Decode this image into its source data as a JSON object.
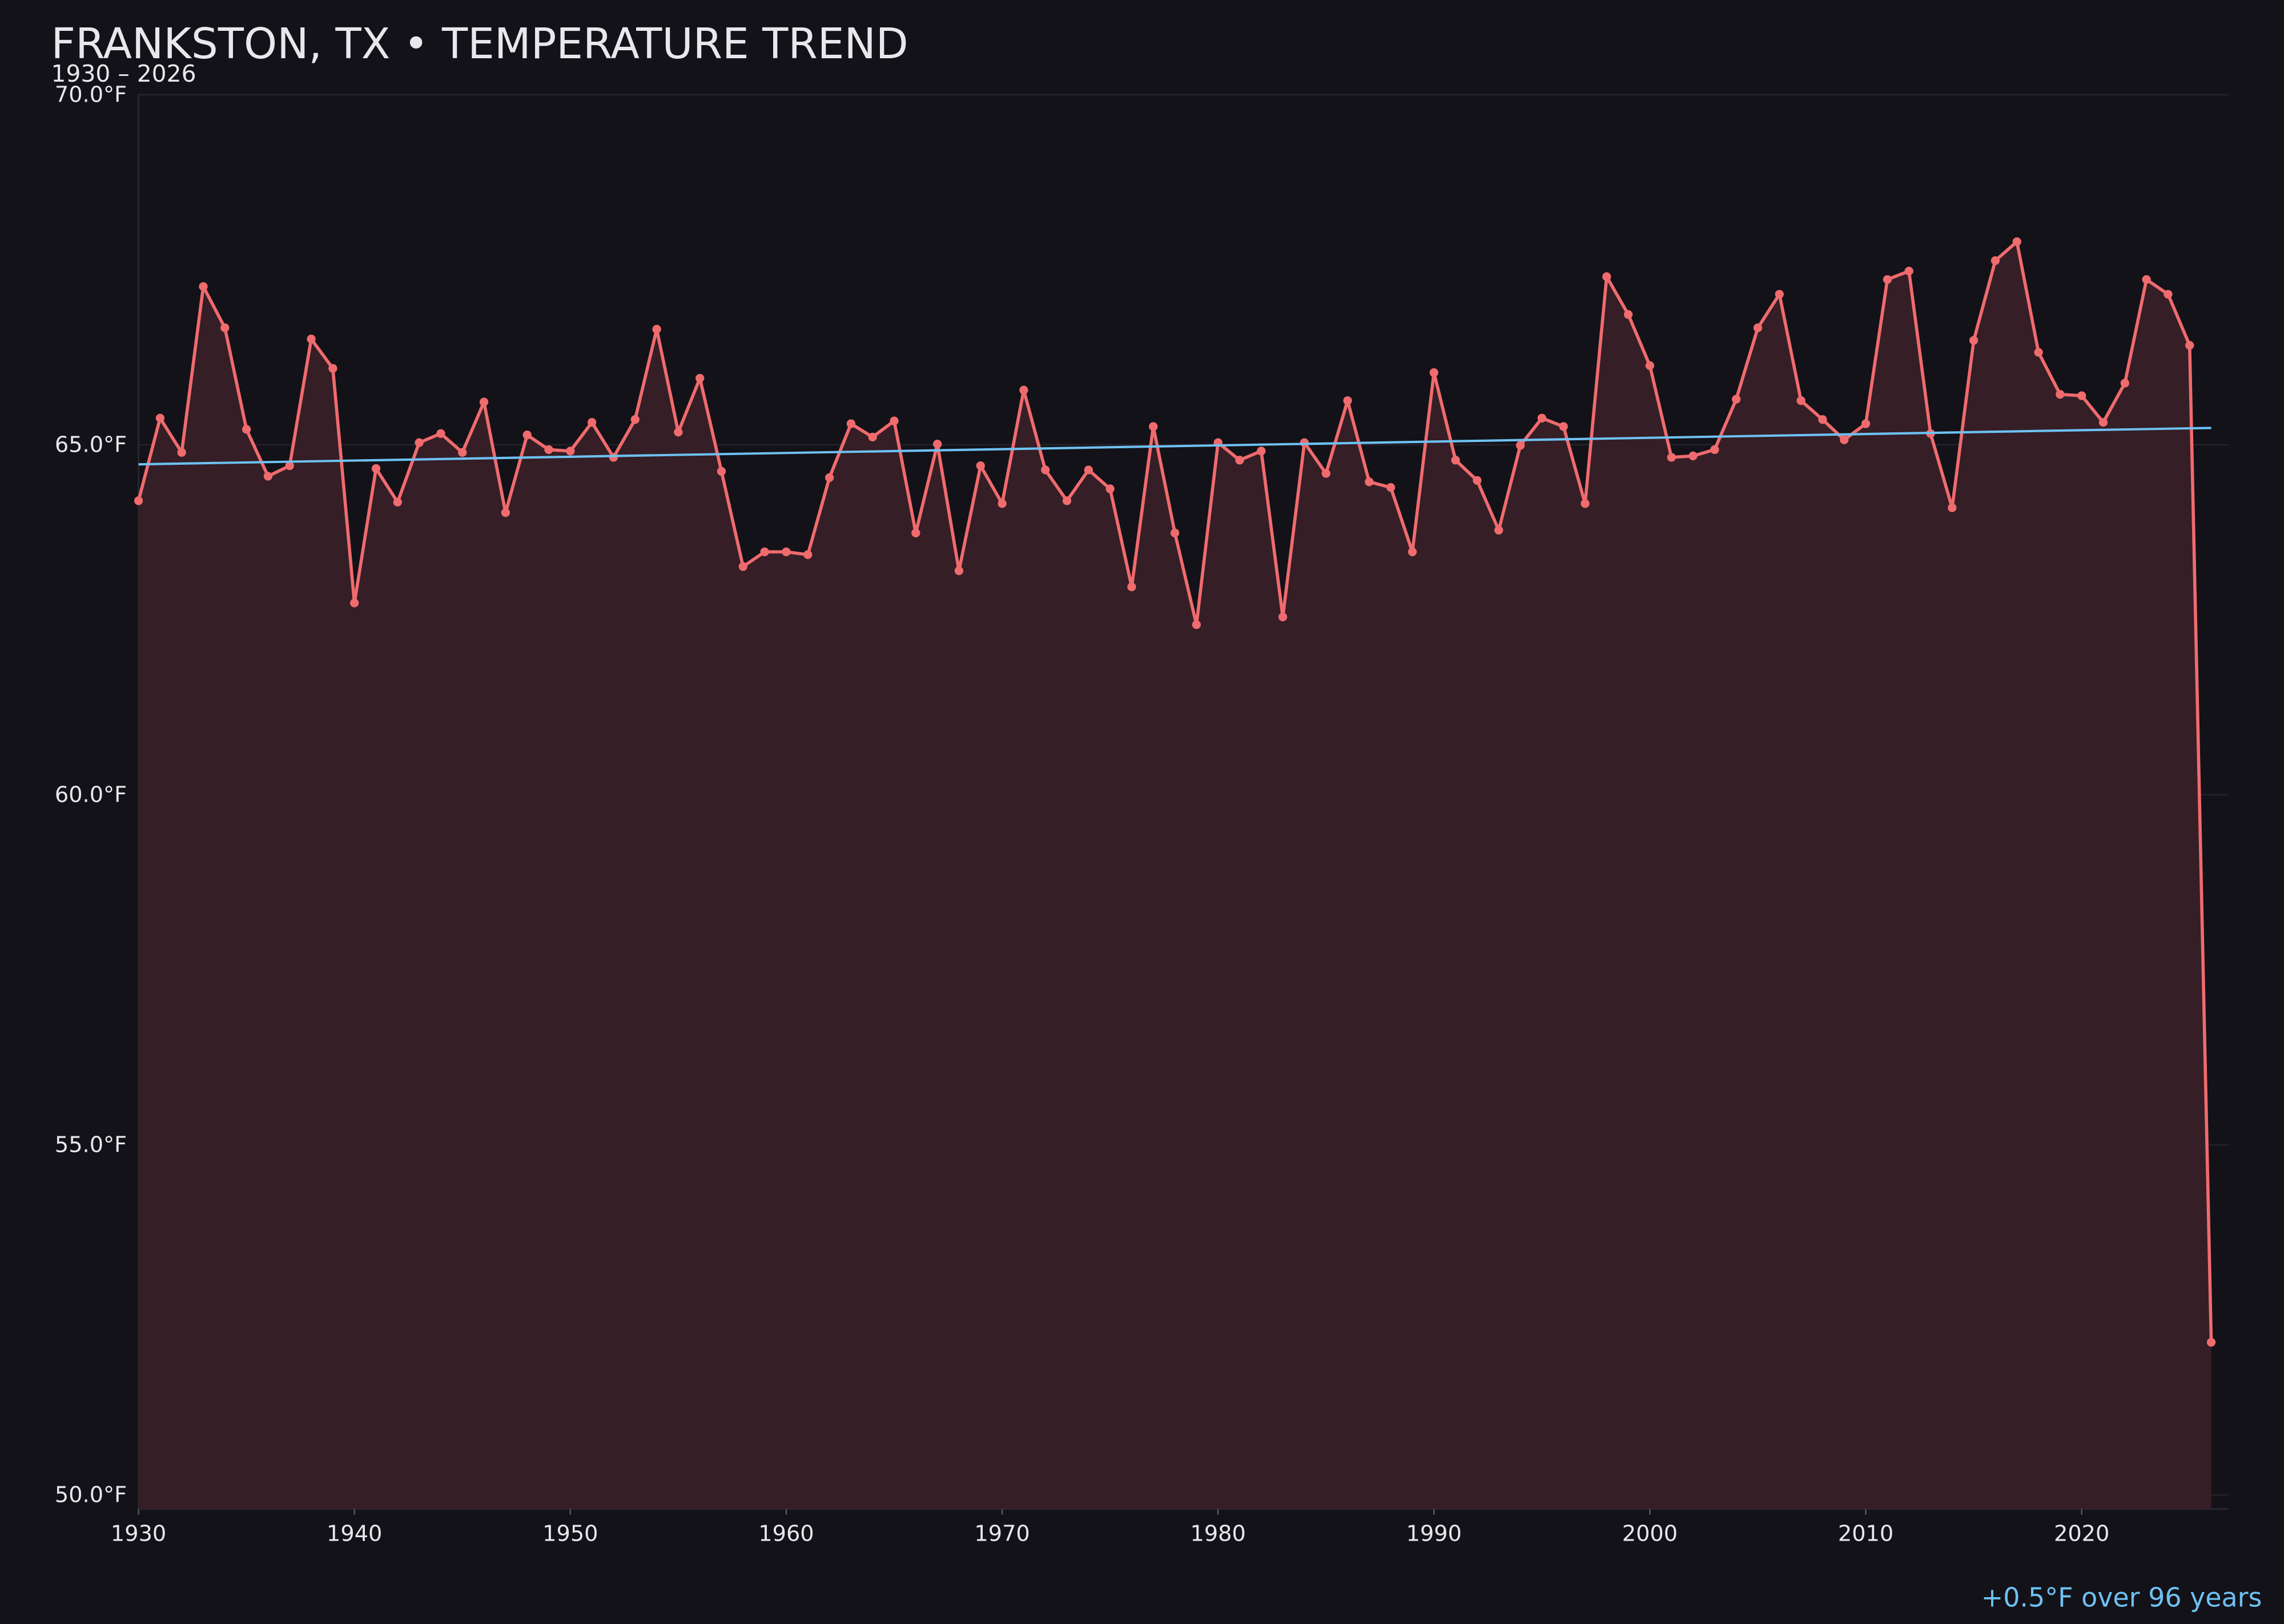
{
  "chart_data": {
    "type": "line",
    "title": "FRANKSTON, TX • TEMPERATURE TREND",
    "subtitle": "1930 – 2026",
    "annotation": "+0.5°F over 96 years",
    "x": [
      1930,
      1931,
      1932,
      1933,
      1934,
      1935,
      1936,
      1937,
      1938,
      1939,
      1940,
      1941,
      1942,
      1943,
      1944,
      1945,
      1946,
      1947,
      1948,
      1949,
      1950,
      1951,
      1952,
      1953,
      1954,
      1955,
      1956,
      1957,
      1958,
      1959,
      1960,
      1961,
      1962,
      1963,
      1964,
      1965,
      1966,
      1967,
      1968,
      1969,
      1970,
      1971,
      1972,
      1973,
      1974,
      1975,
      1976,
      1977,
      1978,
      1979,
      1980,
      1981,
      1982,
      1983,
      1984,
      1985,
      1986,
      1987,
      1988,
      1989,
      1990,
      1991,
      1992,
      1993,
      1994,
      1995,
      1996,
      1997,
      1998,
      1999,
      2000,
      2001,
      2002,
      2003,
      2004,
      2005,
      2006,
      2007,
      2008,
      2009,
      2010,
      2011,
      2012,
      2013,
      2014,
      2015,
      2016,
      2017,
      2018,
      2019,
      2020,
      2021,
      2022,
      2023,
      2024,
      2025,
      2026
    ],
    "series": [
      {
        "color": "#ef6b6e",
        "fill": "#351e26",
        "values": [
          64.2,
          65.38,
          64.89,
          67.26,
          66.67,
          65.22,
          64.55,
          64.7,
          66.51,
          66.09,
          62.74,
          64.66,
          64.18,
          65.03,
          65.16,
          64.89,
          65.61,
          64.03,
          65.14,
          64.93,
          64.91,
          65.32,
          64.82,
          65.36,
          66.65,
          65.18,
          65.95,
          64.62,
          63.26,
          63.47,
          63.47,
          63.43,
          64.53,
          65.3,
          65.11,
          65.34,
          63.74,
          65.01,
          63.2,
          64.7,
          64.16,
          65.78,
          64.64,
          64.2,
          64.64,
          64.37,
          62.97,
          65.26,
          63.74,
          62.43,
          65.03,
          64.78,
          64.91,
          62.54,
          65.03,
          64.59,
          65.63,
          64.47,
          64.39,
          63.47,
          66.03,
          64.78,
          64.49,
          63.78,
          64.99,
          65.38,
          65.26,
          64.16,
          67.4,
          66.86,
          66.13,
          64.82,
          64.84,
          64.93,
          65.65,
          66.67,
          67.15,
          65.63,
          65.36,
          65.07,
          65.3,
          67.36,
          67.48,
          65.16,
          64.1,
          66.49,
          67.63,
          67.9,
          66.32,
          65.72,
          65.7,
          65.32,
          65.88,
          67.36,
          67.15,
          66.42,
          52.18
        ]
      }
    ],
    "trend": {
      "color": "#6ec1f2",
      "x": [
        1930,
        2026
      ],
      "values": [
        64.72,
        65.24
      ]
    },
    "xlim": [
      1930,
      2026.8
    ],
    "ylim": [
      49.8,
      70
    ],
    "xticks": [
      1930,
      1940,
      1950,
      1960,
      1970,
      1980,
      1990,
      2000,
      2010,
      2020
    ],
    "yticks": [
      {
        "value": 50,
        "label": "50.0°F"
      },
      {
        "value": 55,
        "label": "55.0°F"
      },
      {
        "value": 60,
        "label": "60.0°F"
      },
      {
        "value": 65,
        "label": "65.0°F"
      },
      {
        "value": 70,
        "label": "70.0°F"
      }
    ],
    "grid": true
  }
}
